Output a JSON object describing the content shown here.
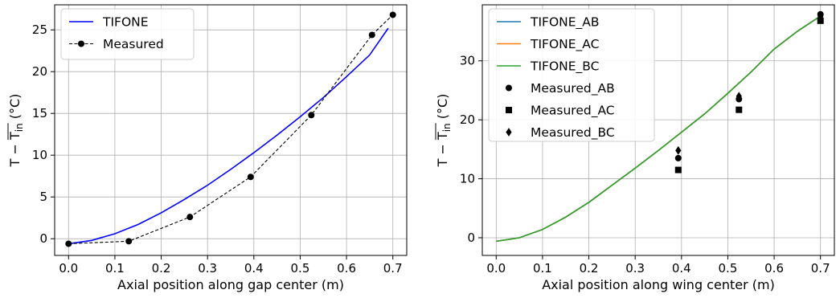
{
  "chart_data": [
    {
      "type": "line",
      "xlabel": "Axial position along gap center (m)",
      "ylabel_main": "T − T",
      "ylabel_sub": "in",
      "ylabel_unit": " (°C)",
      "xlim": [
        -0.03,
        0.73
      ],
      "ylim": [
        -2,
        28
      ],
      "xticks": [
        0.0,
        0.1,
        0.2,
        0.3,
        0.4,
        0.5,
        0.6,
        0.7
      ],
      "xtick_labels": [
        "0.0",
        "0.1",
        "0.2",
        "0.3",
        "0.4",
        "0.5",
        "0.6",
        "0.7"
      ],
      "yticks": [
        0,
        5,
        10,
        15,
        20,
        25
      ],
      "ytick_labels": [
        "0",
        "5",
        "10",
        "15",
        "20",
        "25"
      ],
      "grid": true,
      "legend_position": "top-left",
      "series": [
        {
          "name": "TIFONE",
          "color": "#0000ff",
          "style": "solid",
          "marker": "none",
          "x": [
            0.0,
            0.05,
            0.1,
            0.15,
            0.2,
            0.25,
            0.3,
            0.35,
            0.4,
            0.45,
            0.5,
            0.55,
            0.6,
            0.65,
            0.69
          ],
          "y": [
            -0.6,
            -0.2,
            0.6,
            1.7,
            3.1,
            4.7,
            6.4,
            8.3,
            10.3,
            12.4,
            14.6,
            16.9,
            19.4,
            22.0,
            25.2
          ]
        },
        {
          "name": "Measured",
          "color": "#000000",
          "style": "dashed",
          "marker": "circle",
          "x": [
            0.0,
            0.13,
            0.262,
            0.393,
            0.524,
            0.655,
            0.7
          ],
          "y": [
            -0.6,
            -0.3,
            2.6,
            7.4,
            14.8,
            24.4,
            26.8
          ]
        }
      ]
    },
    {
      "type": "line",
      "xlabel": "Axial position along wing center (m)",
      "ylabel_main": "T − T",
      "ylabel_sub": "in",
      "ylabel_unit": " (°C)",
      "xlim": [
        -0.03,
        0.73
      ],
      "ylim": [
        -3,
        39.5
      ],
      "xticks": [
        0.0,
        0.1,
        0.2,
        0.3,
        0.4,
        0.5,
        0.6,
        0.7
      ],
      "xtick_labels": [
        "0.0",
        "0.1",
        "0.2",
        "0.3",
        "0.4",
        "0.5",
        "0.6",
        "0.7"
      ],
      "yticks": [
        0,
        10,
        20,
        30
      ],
      "ytick_labels": [
        "0",
        "10",
        "20",
        "30"
      ],
      "grid": true,
      "legend_position": "top-left",
      "series": [
        {
          "name": "TIFONE_AB",
          "color": "#1f77b4",
          "style": "solid",
          "marker": "none",
          "x": [
            0.0,
            0.05,
            0.1,
            0.15,
            0.2,
            0.25,
            0.3,
            0.35,
            0.4,
            0.45,
            0.5,
            0.55,
            0.6,
            0.65,
            0.7
          ],
          "y": [
            -0.6,
            0.0,
            1.4,
            3.5,
            6.0,
            8.9,
            11.8,
            14.8,
            17.9,
            21.0,
            24.5,
            28.1,
            32.0,
            35.0,
            37.6
          ]
        },
        {
          "name": "TIFONE_AC",
          "color": "#ff7f0e",
          "style": "solid",
          "marker": "none",
          "x": [
            0.0,
            0.05,
            0.1,
            0.15,
            0.2,
            0.25,
            0.3,
            0.35,
            0.4,
            0.45,
            0.5,
            0.55,
            0.6,
            0.65,
            0.7
          ],
          "y": [
            -0.6,
            0.0,
            1.4,
            3.5,
            6.0,
            8.9,
            11.8,
            14.8,
            17.9,
            21.0,
            24.5,
            28.1,
            32.0,
            35.0,
            37.6
          ]
        },
        {
          "name": "TIFONE_BC",
          "color": "#2ca02c",
          "style": "solid",
          "marker": "none",
          "x": [
            0.0,
            0.05,
            0.1,
            0.15,
            0.2,
            0.25,
            0.3,
            0.35,
            0.4,
            0.45,
            0.5,
            0.55,
            0.6,
            0.65,
            0.7
          ],
          "y": [
            -0.6,
            0.0,
            1.4,
            3.5,
            6.0,
            8.9,
            11.8,
            14.8,
            17.9,
            21.0,
            24.5,
            28.1,
            32.0,
            35.0,
            37.6
          ]
        },
        {
          "name": "Measured_AB",
          "color": "#000000",
          "style": "none",
          "marker": "circle",
          "x": [
            0.393,
            0.524,
            0.7
          ],
          "y": [
            13.5,
            23.5,
            37.9
          ]
        },
        {
          "name": "Measured_AC",
          "color": "#000000",
          "style": "none",
          "marker": "square",
          "x": [
            0.393,
            0.524,
            0.7
          ],
          "y": [
            11.5,
            21.7,
            36.8
          ]
        },
        {
          "name": "Measured_BC",
          "color": "#000000",
          "style": "none",
          "marker": "diamond",
          "x": [
            0.393,
            0.524,
            0.7
          ],
          "y": [
            14.8,
            24.0,
            37.5
          ]
        }
      ]
    }
  ]
}
